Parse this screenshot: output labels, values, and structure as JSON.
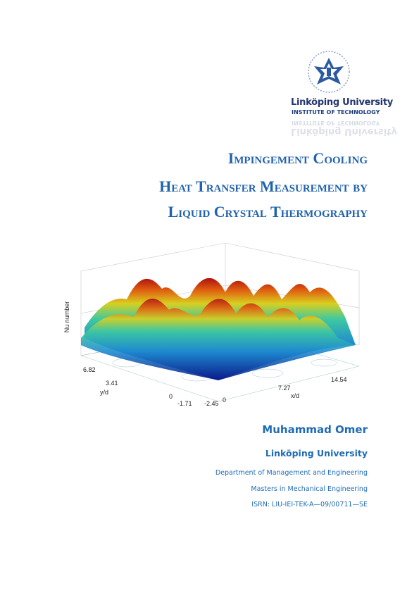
{
  "logo": {
    "name": "Linköping University",
    "subtitle": "INSTITUTE OF TECHNOLOGY"
  },
  "title": {
    "lines": [
      "Impingement Cooling",
      "Heat Transfer Measurement by",
      "Liquid Crystal Thermography"
    ]
  },
  "figure": {
    "z_label": "Nu number",
    "y_label": "y/d",
    "x_label": "x/d",
    "y_ticks": [
      "6.82",
      "3.41",
      "0",
      "-1.71",
      "-2.45"
    ],
    "x_ticks": [
      "0",
      "7.27",
      "14.54"
    ]
  },
  "author": {
    "name": "Muhammad Omer",
    "university": "Linköping University",
    "department": "Department of Management and Engineering",
    "program": "Masters in Mechanical Engineering",
    "isrn": "ISRN: LIU-IEI-TEK-A—09/00711—SE"
  }
}
